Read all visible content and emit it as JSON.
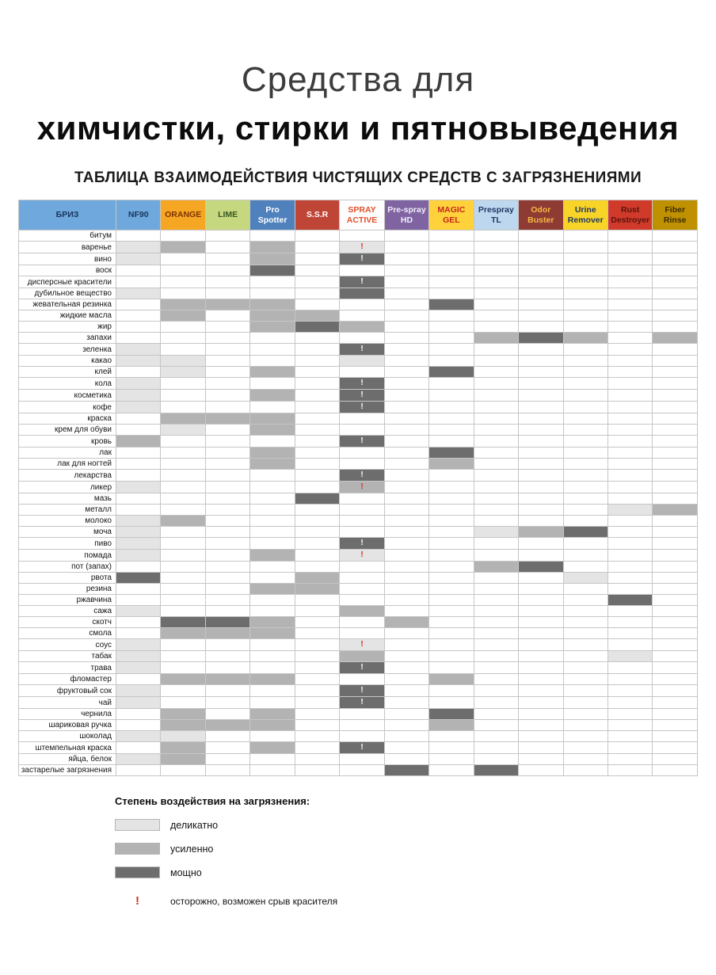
{
  "title": {
    "line1": "Средства для",
    "line2": "химчистки, стирки и пятновыведения"
  },
  "subtitle": "ТАБЛИЦА ВЗАИМОДЕЙСТВИЯ ЧИСТЯЩИХ СРЕДСТВ С ЗАГРЯЗНЕНИЯМИ",
  "chart_data": {
    "type": "heatmap",
    "title": "ТАБЛИЦА ВЗАИМОДЕЙСТВИЯ ЧИСТЯЩИХ СРЕДСТВ С ЗАГРЯЗНЕНИЯМИ",
    "legend_position": "bottom-left",
    "value_scale": {
      "1": "деликатно",
      "2": "усиленно",
      "3": "мощно",
      "!": "осторожно, возможен срыв красителя"
    },
    "corner": {
      "label": "БРИЗ",
      "bg": "#6fa8dc",
      "fg": "#17365d"
    },
    "columns": [
      {
        "label": "NF90",
        "bg": "#6fa8dc",
        "fg": "#17365d"
      },
      {
        "label": "ORANGE",
        "bg": "#f5a623",
        "fg": "#7f3300"
      },
      {
        "label": "LIME",
        "bg": "#c6d87f",
        "fg": "#375623"
      },
      {
        "label": "Pro Spotter",
        "bg": "#4f81bd",
        "fg": "#ffffff"
      },
      {
        "label": "S.S.R",
        "bg": "#bf4537",
        "fg": "#ffffff"
      },
      {
        "label": "SPRAY ACTIVE",
        "bg": "#fdfdfd",
        "fg": "#e2502a"
      },
      {
        "label": "Pre-spray HD",
        "bg": "#8064a2",
        "fg": "#f2eefb"
      },
      {
        "label": "MAGIC GEL",
        "bg": "#ffd23b",
        "fg": "#c4271c"
      },
      {
        "label": "Prespray TL",
        "bg": "#bdd7ee",
        "fg": "#1f3864"
      },
      {
        "label": "Odor Buster",
        "bg": "#8e3b34",
        "fg": "#f5b942"
      },
      {
        "label": "Urine Remover",
        "bg": "#f7d427",
        "fg": "#1f3864"
      },
      {
        "label": "Rust Destroyer",
        "bg": "#d03a2b",
        "fg": "#5a120c"
      },
      {
        "label": "Fiber Rinse",
        "bg": "#bf9000",
        "fg": "#3b2b00"
      }
    ],
    "rows": [
      "битум",
      "варенье",
      "вино",
      "воск",
      "дисперсные красители",
      "дубильное вещество",
      "жевательная резинка",
      "жидкие масла",
      "жир",
      "запахи",
      "зеленка",
      "какао",
      "клей",
      "кола",
      "косметика",
      "кофе",
      "краска",
      "крем для обуви",
      "кровь",
      "лак",
      "лак для ногтей",
      "лекарства",
      "ликер",
      "мазь",
      "металл",
      "молоко",
      "моча",
      "пиво",
      "помада",
      "пот (запах)",
      "рвота",
      "резина",
      "ржавчина",
      "сажа",
      "скотч",
      "смола",
      "соус",
      "табак",
      "трава",
      "фломастер",
      "фруктовый сок",
      "чай",
      "чернила",
      "шариковая ручка",
      "шоколад",
      "штемпельная краска",
      "яйца, белок",
      "застарелые загрязнения"
    ],
    "cells": [
      [
        "",
        "",
        "",
        "",
        "",
        "",
        "",
        "",
        "",
        "",
        "",
        "",
        ""
      ],
      [
        "1",
        "2",
        "",
        "2",
        "",
        "1!",
        "",
        "",
        "",
        "",
        "",
        "",
        ""
      ],
      [
        "1",
        "",
        "",
        "2",
        "",
        "3!",
        "",
        "",
        "",
        "",
        "",
        "",
        ""
      ],
      [
        "",
        "",
        "",
        "3",
        "",
        "",
        "",
        "",
        "",
        "",
        "",
        "",
        ""
      ],
      [
        "",
        "",
        "",
        "",
        "",
        "3!",
        "",
        "",
        "",
        "",
        "",
        "",
        ""
      ],
      [
        "1",
        "",
        "",
        "",
        "",
        "3",
        "",
        "",
        "",
        "",
        "",
        "",
        ""
      ],
      [
        "",
        "2",
        "2",
        "2",
        "",
        "",
        "",
        "3",
        "",
        "",
        "",
        "",
        ""
      ],
      [
        "",
        "2",
        "",
        "2",
        "2",
        "",
        "",
        "",
        "",
        "",
        "",
        "",
        ""
      ],
      [
        "",
        "",
        "",
        "2",
        "3",
        "2",
        "",
        "",
        "",
        "",
        "",
        "",
        ""
      ],
      [
        "",
        "",
        "",
        "",
        "",
        "",
        "",
        "",
        "2",
        "3",
        "2",
        "",
        "2"
      ],
      [
        "1",
        "",
        "",
        "",
        "",
        "3!",
        "",
        "",
        "",
        "",
        "",
        "",
        ""
      ],
      [
        "1",
        "1",
        "",
        "",
        "",
        "1",
        "",
        "",
        "",
        "",
        "",
        "",
        ""
      ],
      [
        "",
        "1",
        "",
        "2",
        "",
        "",
        "",
        "3",
        "",
        "",
        "",
        "",
        ""
      ],
      [
        "1",
        "",
        "",
        "",
        "",
        "3!",
        "",
        "",
        "",
        "",
        "",
        "",
        ""
      ],
      [
        "1",
        "",
        "",
        "2",
        "",
        "3!",
        "",
        "",
        "",
        "",
        "",
        "",
        ""
      ],
      [
        "1",
        "",
        "",
        "",
        "",
        "3!",
        "",
        "",
        "",
        "",
        "",
        "",
        ""
      ],
      [
        "",
        "2",
        "2",
        "2",
        "",
        "",
        "",
        "",
        "",
        "",
        "",
        "",
        ""
      ],
      [
        "",
        "1",
        "",
        "2",
        "",
        "",
        "",
        "",
        "",
        "",
        "",
        "",
        ""
      ],
      [
        "2",
        "",
        "",
        "",
        "",
        "3!",
        "",
        "",
        "",
        "",
        "",
        "",
        ""
      ],
      [
        "",
        "",
        "",
        "2",
        "",
        "",
        "",
        "3",
        "",
        "",
        "",
        "",
        ""
      ],
      [
        "",
        "",
        "",
        "2",
        "",
        "",
        "",
        "2",
        "",
        "",
        "",
        "",
        ""
      ],
      [
        "",
        "",
        "",
        "",
        "",
        "3!",
        "",
        "",
        "",
        "",
        "",
        "",
        ""
      ],
      [
        "1",
        "",
        "",
        "",
        "",
        "2!",
        "",
        "",
        "",
        "",
        "",
        "",
        ""
      ],
      [
        "",
        "",
        "",
        "",
        "3",
        "",
        "",
        "",
        "",
        "",
        "",
        "",
        ""
      ],
      [
        "",
        "",
        "",
        "",
        "",
        "",
        "",
        "",
        "",
        "",
        "",
        "1",
        "2"
      ],
      [
        "1",
        "2",
        "",
        "",
        "",
        "",
        "",
        "",
        "",
        "",
        "",
        "",
        ""
      ],
      [
        "1",
        "",
        "",
        "",
        "",
        "",
        "",
        "",
        "1",
        "2",
        "3",
        "",
        ""
      ],
      [
        "1",
        "",
        "",
        "",
        "",
        "3!",
        "",
        "",
        "",
        "",
        "",
        "",
        ""
      ],
      [
        "1",
        "",
        "",
        "2",
        "",
        "1!",
        "",
        "",
        "",
        "",
        "",
        "",
        ""
      ],
      [
        "",
        "",
        "",
        "",
        "",
        "",
        "",
        "",
        "2",
        "3",
        "",
        "",
        ""
      ],
      [
        "3",
        "",
        "",
        "",
        "2",
        "",
        "",
        "",
        "",
        "",
        "1",
        "",
        ""
      ],
      [
        "",
        "",
        "",
        "2",
        "2",
        "",
        "",
        "",
        "",
        "",
        "",
        "",
        ""
      ],
      [
        "",
        "",
        "",
        "",
        "",
        "",
        "",
        "",
        "",
        "",
        "",
        "3",
        ""
      ],
      [
        "1",
        "",
        "",
        "",
        "",
        "2",
        "",
        "",
        "",
        "",
        "",
        "",
        ""
      ],
      [
        "",
        "3",
        "3",
        "2",
        "",
        "",
        "2",
        "",
        "",
        "",
        "",
        "",
        ""
      ],
      [
        "",
        "2",
        "2",
        "2",
        "",
        "",
        "",
        "",
        "",
        "",
        "",
        "",
        ""
      ],
      [
        "1",
        "",
        "",
        "",
        "",
        "1!",
        "",
        "",
        "",
        "",
        "",
        "",
        ""
      ],
      [
        "1",
        "",
        "",
        "",
        "",
        "2",
        "",
        "",
        "",
        "",
        "",
        "1",
        ""
      ],
      [
        "1",
        "",
        "",
        "",
        "",
        "3!",
        "",
        "",
        "",
        "",
        "",
        "",
        ""
      ],
      [
        "",
        "2",
        "2",
        "2",
        "",
        "",
        "",
        "2",
        "",
        "",
        "",
        "",
        ""
      ],
      [
        "1",
        "",
        "",
        "",
        "",
        "3!",
        "",
        "",
        "",
        "",
        "",
        "",
        ""
      ],
      [
        "1",
        "",
        "",
        "",
        "",
        "3!",
        "",
        "",
        "",
        "",
        "",
        "",
        ""
      ],
      [
        "",
        "2",
        "",
        "2",
        "",
        "",
        "",
        "3",
        "",
        "",
        "",
        "",
        ""
      ],
      [
        "",
        "2",
        "2",
        "2",
        "",
        "",
        "",
        "2",
        "",
        "",
        "",
        "",
        ""
      ],
      [
        "1",
        "1",
        "",
        "",
        "",
        "",
        "",
        "",
        "",
        "",
        "",
        "",
        ""
      ],
      [
        "",
        "2",
        "",
        "2",
        "",
        "3!",
        "",
        "",
        "",
        "",
        "",
        "",
        ""
      ],
      [
        "1",
        "2",
        "",
        "",
        "",
        "",
        "",
        "",
        "",
        "",
        "",
        "",
        ""
      ],
      [
        "",
        "",
        "",
        "",
        "",
        "",
        "3",
        "",
        "3",
        "",
        "",
        "",
        ""
      ]
    ]
  },
  "legend": {
    "heading": "Степень воздействия на загрязнения:",
    "items": [
      {
        "value": "1",
        "label": "деликатно",
        "color": "#e4e4e4"
      },
      {
        "value": "2",
        "label": "усиленно",
        "color": "#b3b3b3"
      },
      {
        "value": "3",
        "label": "мощно",
        "color": "#6d6d6d"
      }
    ],
    "warning": {
      "symbol": "!",
      "label": "осторожно, возможен срыв красителя",
      "color": "#d2301c"
    }
  }
}
